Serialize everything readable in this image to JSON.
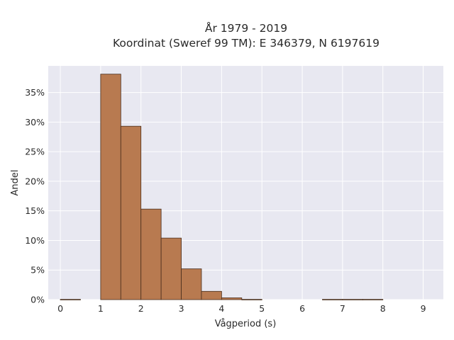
{
  "chart_data": {
    "type": "bar",
    "title": "År 1979 - 2019",
    "subtitle": "Koordinat (Sweref 99 TM): E 346379, N 6197619",
    "xlabel": "Vågperiod (s)",
    "ylabel": "Andel",
    "bin_width": 0.5,
    "bins": [
      {
        "x0": 0.0,
        "value": 0.0005
      },
      {
        "x0": 0.5,
        "value": 0.0
      },
      {
        "x0": 1.0,
        "value": 0.381
      },
      {
        "x0": 1.5,
        "value": 0.293
      },
      {
        "x0": 2.0,
        "value": 0.153
      },
      {
        "x0": 2.5,
        "value": 0.104
      },
      {
        "x0": 3.0,
        "value": 0.052
      },
      {
        "x0": 3.5,
        "value": 0.014
      },
      {
        "x0": 4.0,
        "value": 0.003
      },
      {
        "x0": 4.5,
        "value": 0.0005
      },
      {
        "x0": 5.0,
        "value": 0.0
      },
      {
        "x0": 5.5,
        "value": 0.0
      },
      {
        "x0": 6.0,
        "value": 0.0
      },
      {
        "x0": 6.5,
        "value": 0.0005
      },
      {
        "x0": 7.0,
        "value": 0.0005
      },
      {
        "x0": 7.5,
        "value": 0.0005
      }
    ],
    "xlim": [
      -0.3,
      9.5
    ],
    "ylim": [
      0,
      0.395
    ],
    "xticks": [
      0,
      1,
      2,
      3,
      4,
      5,
      6,
      7,
      8,
      9
    ],
    "xtick_labels": [
      "0",
      "1",
      "2",
      "3",
      "4",
      "5",
      "6",
      "7",
      "8",
      "9"
    ],
    "yticks": [
      0,
      0.05,
      0.1,
      0.15,
      0.2,
      0.25,
      0.3,
      0.35
    ],
    "ytick_labels": [
      "0%",
      "5%",
      "10%",
      "15%",
      "20%",
      "25%",
      "30%",
      "35%"
    ],
    "grid": true,
    "colors": {
      "bar_fill": "#b87a50",
      "bar_edge": "#4a2e1c",
      "plot_bg": "#e8e8f1",
      "grid": "#ffffff"
    }
  }
}
